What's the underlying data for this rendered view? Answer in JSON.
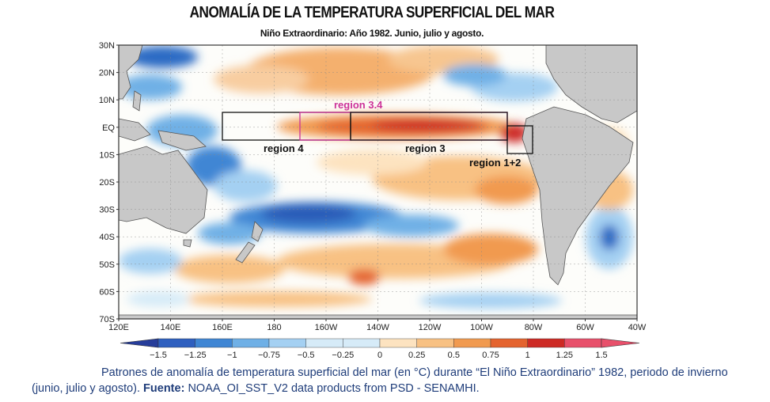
{
  "header": {
    "title": "ANOMALÍA DE LA TEMPERATURA SUPERFICIAL DEL MAR",
    "subtitle": "Niño Extraordinario: Año 1982. Junio, julio y agosto."
  },
  "map": {
    "lat_labels": [
      "30N",
      "20N",
      "10N",
      "EQ",
      "10S",
      "20S",
      "30S",
      "40S",
      "50S",
      "60S",
      "70S"
    ],
    "lon_labels": [
      "120E",
      "140E",
      "160E",
      "180",
      "160W",
      "140W",
      "120W",
      "100W",
      "80W",
      "60W",
      "40W"
    ],
    "regions": [
      {
        "id": "region-3-4",
        "label": "region 3.4",
        "color": "#cc3399"
      },
      {
        "id": "region-4",
        "label": "region 4",
        "color": "#111111"
      },
      {
        "id": "region-3",
        "label": "region 3",
        "color": "#111111"
      },
      {
        "id": "region-1-2",
        "label": "region 1+2",
        "color": "#111111"
      }
    ],
    "colors": {
      "ocean_neutral": "#fdfdfa",
      "land": "#c8c8c8",
      "warm": "#f2a15a",
      "hot": "#d8262a",
      "cool": "#9ecdf0",
      "cold": "#2a6bc4"
    }
  },
  "colorbar": {
    "labels": [
      "−1.5",
      "−1.25",
      "−1",
      "−0.75",
      "−0.5",
      "−0.25",
      "0",
      "0.25",
      "0.5",
      "0.75",
      "1",
      "1.25",
      "1.5"
    ],
    "colors": [
      "#263d9a",
      "#2e5fbf",
      "#3f86d4",
      "#6fb0e6",
      "#a4d0f2",
      "#d6ebf8",
      "#ffffff",
      "#fde3c0",
      "#f8c183",
      "#f19a4f",
      "#e4632e",
      "#cd2a25",
      "#e8506b"
    ]
  },
  "caption": {
    "main": "Patrones de anomalía de temperatura superficial del mar (en °C) durante “El Niño Extraordinario” 1982, periodo de invierno (junio, julio y agosto).",
    "source_label": "Fuente:",
    "source": "NOAA_OI_SST_V2 data products from PSD - SENAMHI."
  }
}
